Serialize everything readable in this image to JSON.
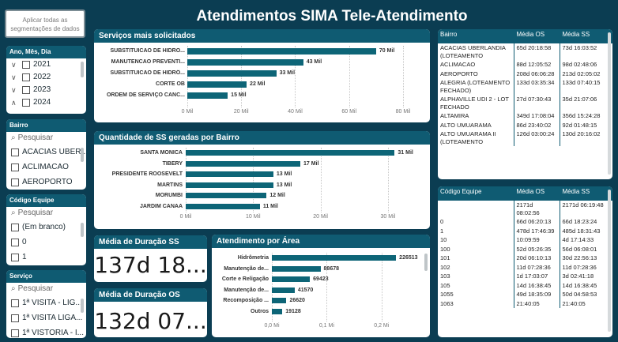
{
  "header": {
    "title": "Atendimentos SIMA Tele-Atendimento"
  },
  "apply_button": {
    "label": "Aplicar todas as segmentações de dados"
  },
  "slicer_date": {
    "title": "Ano, Mês, Dia",
    "items": [
      {
        "label": "2021",
        "chev": "∨"
      },
      {
        "label": "2022",
        "chev": "∨"
      },
      {
        "label": "2023",
        "chev": "∨"
      },
      {
        "label": "2024",
        "chev": "∧"
      }
    ]
  },
  "slicer_bairro": {
    "title": "Bairro",
    "search_placeholder": "Pesquisar",
    "items": [
      "ACACIAS UBER...",
      "ACLIMACAO",
      "AEROPORTO"
    ]
  },
  "slicer_equipe": {
    "title": "Código Equipe",
    "search_placeholder": "Pesquisar",
    "items": [
      "(Em branco)",
      "0",
      "1"
    ]
  },
  "slicer_servico": {
    "title": "Serviço",
    "search_placeholder": "Pesquisar",
    "items": [
      "1ª VISITA - LIG...",
      "1ª VISITA LIGA...",
      "1ª VISTORIA - I..."
    ]
  },
  "chart_servicos": {
    "title": "Serviços mais solicitados",
    "ticks": [
      "0 Mil",
      "20 Mil",
      "40 Mil",
      "60 Mil",
      "80 Mil"
    ]
  },
  "chart_bairros": {
    "title": "Quantidade de SS geradas por Bairro",
    "ticks": [
      "0 Mil",
      "10 Mil",
      "20 Mil",
      "30 Mil"
    ]
  },
  "chart_area": {
    "title": "Atendimento por Área",
    "ticks": [
      "0,0 Mi",
      "0,1 Mi",
      "0,2 Mi"
    ]
  },
  "kpi_os": {
    "title": "Média de Duração SS",
    "value": "137d 18..."
  },
  "kpi_ss": {
    "title": "Média de Duração OS",
    "value": "132d 07..."
  },
  "table_bairro": {
    "headers": [
      "Bairro",
      "Média OS",
      "Média SS"
    ],
    "rows": [
      [
        "ACACIAS UBERLANDIA (LOTEAMENTO",
        "65d 20:18:58",
        "73d 16:03:52"
      ],
      [
        "ACLIMACAO",
        "88d 12:05:52",
        "98d 02:48:06"
      ],
      [
        "AEROPORTO",
        "208d 06:06:28",
        "213d 02:05:02"
      ],
      [
        "ALEGRIA (LOTEAMENTO FECHADO)",
        "133d 03:35:34",
        "133d 07:40:15"
      ],
      [
        "ALPHAVILLE UDI 2 - LOT FECHADO",
        "27d 07:30:43",
        "35d 21:07:06"
      ],
      [
        "ALTAMIRA",
        "349d 17:08:04",
        "356d 15:24:28"
      ],
      [
        "ALTO UMUARAMA",
        "86d 23:40:02",
        "92d 01:48:15"
      ],
      [
        "ALTO UMUARAMA II (LOTEAMENTO",
        "126d 03:00:24",
        "130d 20:16:02"
      ]
    ]
  },
  "table_equipe": {
    "headers": [
      "Código Equipe",
      "Média OS",
      "Média SS"
    ],
    "rows": [
      [
        "",
        "2171d 08:02:56",
        "2171d 06:19:48"
      ],
      [
        "0",
        "66d 06:20:13",
        "66d 18:23:24"
      ],
      [
        "1",
        "478d 17:46:39",
        "485d 18:31:43"
      ],
      [
        "10",
        "10:09:59",
        "4d 17:14:33"
      ],
      [
        "100",
        "52d 05:26:35",
        "56d 06:08:01"
      ],
      [
        "101",
        "20d 06:10:13",
        "30d 22:56:13"
      ],
      [
        "102",
        "11d 07:28:36",
        "11d 07:28:36"
      ],
      [
        "103",
        "1d 17:03:07",
        "3d 02:41:18"
      ],
      [
        "105",
        "14d 16:38:45",
        "14d 16:38:45"
      ],
      [
        "1055",
        "49d 18:35:09",
        "50d 04:58:53"
      ],
      [
        "1063",
        "21:40:05",
        "21:40:05"
      ]
    ]
  },
  "chart_data": [
    {
      "type": "bar",
      "title": "Serviços mais solicitados",
      "categories": [
        "SUBSTITUICAO DE HIDRO...",
        "MANUTENCAO PREVENTI...",
        "SUBSTITUICAO DE HIDRÔ...",
        "CORTE OB",
        "ORDEM DE SERVIÇO CANC..."
      ],
      "values": [
        70,
        43,
        33,
        22,
        15
      ],
      "value_labels": [
        "70 Mil",
        "43 Mil",
        "33 Mil",
        "22 Mil",
        "15 Mil"
      ],
      "xlim": [
        0,
        85
      ],
      "colors": [
        "#0d6577"
      ]
    },
    {
      "type": "bar",
      "title": "Quantidade de SS geradas por Bairro",
      "categories": [
        "SANTA MONICA",
        "TIBERY",
        "PRESIDENTE ROOSEVELT",
        "MARTINS",
        "MORUMBI",
        "JARDIM CANAA"
      ],
      "values": [
        31,
        17,
        13,
        13,
        12,
        11
      ],
      "value_labels": [
        "31 Mil",
        "17 Mil",
        "13 Mil",
        "13 Mil",
        "12 Mil",
        "11 Mil"
      ],
      "xlim": [
        0,
        34
      ],
      "colors": [
        "#0d6577"
      ]
    },
    {
      "type": "bar",
      "title": "Atendimento por Área",
      "categories": [
        "Hidrômetria",
        "Manutenção de...",
        "Corte e Religação",
        "Manutenção de...",
        "Recomposição ...",
        "Outros"
      ],
      "values": [
        226513,
        88678,
        69423,
        41570,
        26620,
        19128
      ],
      "value_labels": [
        "226513",
        "88678",
        "69423",
        "41570",
        "26620",
        "19128"
      ],
      "xlim": [
        0,
        245000
      ],
      "colors": [
        "#0d6577"
      ]
    }
  ]
}
